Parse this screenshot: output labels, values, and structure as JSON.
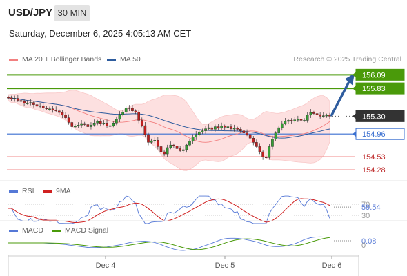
{
  "header": {
    "symbol": "USD/JPY",
    "timeframe": "30 MIN",
    "datetime": "Saturday, December 6, 2025 4:05:13 AM CET"
  },
  "legend": {
    "ma20": {
      "label": "MA 20 + Bollinger Bands",
      "color": "#f28080"
    },
    "ma50": {
      "label": "MA 50",
      "color": "#2e5c9e"
    },
    "credit": "Research © 2025 Trading Central"
  },
  "colors": {
    "resistance": "#4a9a0a",
    "current": "#333333",
    "pivot": "#3a6fd0",
    "support": "#f4a0a0",
    "arrow": "#2e5c9e",
    "bollinger_fill": "#fde0e0",
    "up_candle": "#35a035",
    "down_candle": "#c02020"
  },
  "levels": [
    {
      "label": "156.09",
      "value": 156.09,
      "kind": "resistance"
    },
    {
      "label": "155.83",
      "value": 155.83,
      "kind": "resistance"
    },
    {
      "label": "155.30",
      "value": 155.3,
      "kind": "current"
    },
    {
      "label": "154.96",
      "value": 154.96,
      "kind": "pivot"
    },
    {
      "label": "154.53",
      "value": 154.53,
      "kind": "support"
    },
    {
      "label": "154.28",
      "value": 154.28,
      "kind": "support"
    }
  ],
  "rsi_panel": {
    "rsi_label": "RSI",
    "ma_label": "9MA",
    "rsi_color": "#5578d6",
    "ma_color": "#d02020",
    "current_label": "59.54",
    "tick_70": "70",
    "tick_30": "30"
  },
  "macd_panel": {
    "macd_label": "MACD",
    "signal_label": "MACD Signal",
    "macd_color": "#5578d6",
    "signal_color": "#4a9a0a",
    "current_label": "0.08",
    "tick_0": "0"
  },
  "x_labels": [
    "Dec 4",
    "Dec 5",
    "Dec 6"
  ],
  "chart_data": {
    "type": "candlestick",
    "ylim": [
      154.12,
      156.2
    ],
    "closes": [
      155.65,
      155.63,
      155.64,
      155.6,
      155.58,
      155.55,
      155.55,
      155.56,
      155.52,
      155.49,
      155.5,
      155.46,
      155.44,
      155.44,
      155.42,
      155.4,
      155.37,
      155.32,
      155.27,
      155.18,
      155.1,
      155.11,
      155.13,
      155.16,
      155.14,
      155.1,
      155.13,
      155.17,
      155.2,
      155.16,
      155.17,
      155.11,
      155.12,
      155.17,
      155.24,
      155.33,
      155.38,
      155.46,
      155.45,
      155.4,
      155.38,
      155.22,
      155.12,
      154.95,
      154.8,
      154.83,
      154.84,
      154.72,
      154.62,
      154.58,
      154.7,
      154.75,
      154.73,
      154.68,
      154.64,
      154.66,
      154.75,
      154.82,
      154.9,
      154.95,
      155.0,
      155.02,
      155.06,
      155.08,
      155.05,
      155.1,
      155.07,
      155.11,
      155.09,
      155.1,
      155.06,
      155.07,
      155.05,
      155.02,
      154.98,
      154.95,
      154.88,
      154.8,
      154.72,
      154.62,
      154.52,
      154.51,
      154.72,
      154.86,
      154.98,
      155.08,
      155.16,
      155.2,
      155.22,
      155.21,
      155.23,
      155.24,
      155.22,
      155.22,
      155.32,
      155.37,
      155.35,
      155.33,
      155.3,
      155.31,
      155.32,
      155.3
    ],
    "resistance": [
      156.09,
      155.83
    ],
    "support": [
      154.53,
      154.28
    ],
    "pivot": 154.96,
    "last_price": 155.3,
    "rsi": {
      "last": 59.54,
      "levels": [
        70,
        30
      ]
    },
    "macd": {
      "last": 0.08
    }
  }
}
